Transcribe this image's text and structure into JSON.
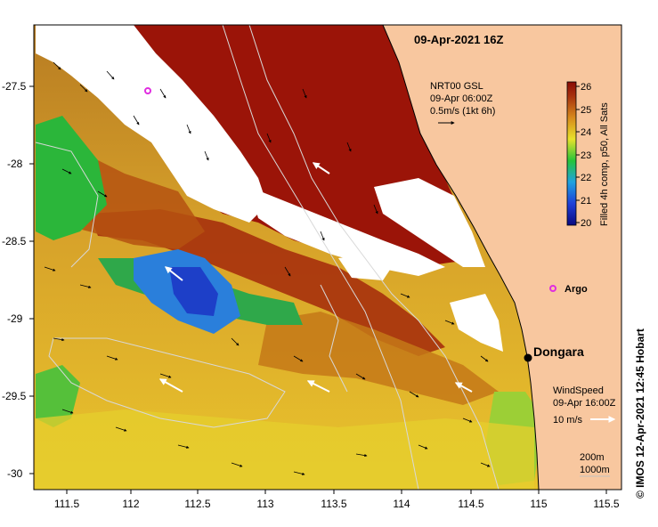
{
  "map": {
    "title": "09-Apr-2021 16Z",
    "x_ticks": [
      "111.5",
      "112",
      "112.5",
      "113",
      "113.5",
      "114",
      "114.5",
      "115",
      "115.5"
    ],
    "y_ticks": [
      "-27.5",
      "-28",
      "-28.5",
      "-29",
      "-29.5",
      "-30"
    ],
    "current_vectors": {
      "line1": "NRT00 GSL",
      "line2": "09-Apr 06:00Z",
      "line3": "0.5m/s (1kt 6h)"
    },
    "wind": {
      "line1": "WindSpeed",
      "line2": "09-Apr 16:00Z",
      "line3": "10 m/s"
    },
    "places": {
      "dongara": "Dongara",
      "argo": "Argo"
    },
    "depth_contours": {
      "line1": "200m",
      "line2": "1000m"
    },
    "colorbar": {
      "label": "Filled 4h comp, p50, All Sats",
      "ticks": [
        "26",
        "25",
        "24",
        "23",
        "22",
        "21",
        "20"
      ]
    },
    "copyright": "© IMOS 12-Apr-2021 12:45 Hobart",
    "colors": {
      "land": "#f8c79f",
      "hot_sst": "#9b1408",
      "cloud": "#ffffff",
      "dongara_marker": "#000000",
      "argo_marker": "#e02de0"
    }
  }
}
